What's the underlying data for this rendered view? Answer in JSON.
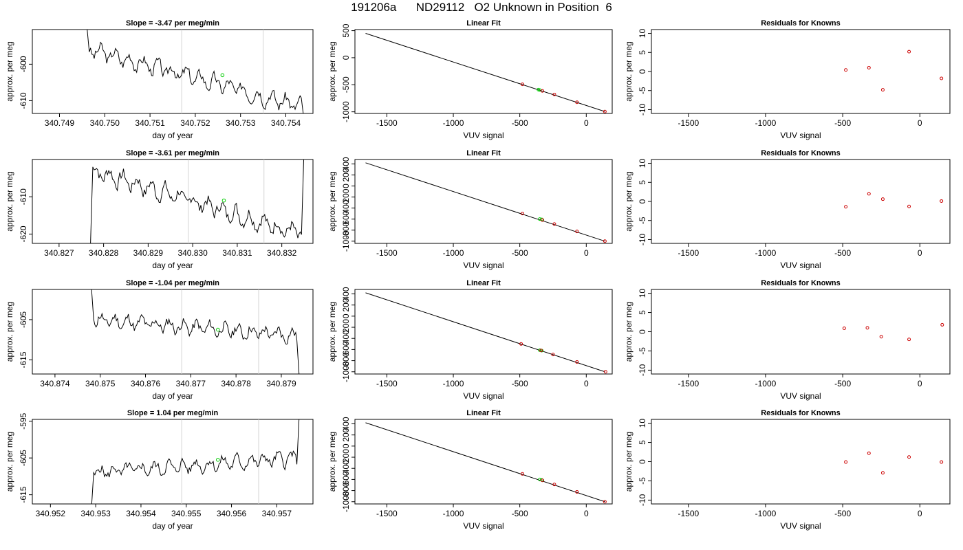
{
  "figure": {
    "title": "191206a      ND29112   O2 Unknown in Position  6"
  },
  "colors": {
    "trace": "#000000",
    "known_points": "#cc0000",
    "unknown_points": "#00cc00",
    "marker_lines": "#d3d3d3"
  },
  "chart_data": [
    {
      "type": "line",
      "panel": "row1-trace",
      "title": "Slope =  -3.47  per meg/min",
      "xlabel": "day of year",
      "ylabel": "approx. per meg",
      "xlim": [
        340.7484,
        340.7546
      ],
      "ylim": [
        -613.5,
        -590.5
      ],
      "xticks": [
        "340.749",
        "340.750",
        "340.751",
        "340.752",
        "340.753",
        "340.754"
      ],
      "xtick_values": [
        340.749,
        340.75,
        340.751,
        340.752,
        340.753,
        340.754
      ],
      "yticks": [
        "-600",
        "-610"
      ],
      "ytick_values": [
        -600,
        -610
      ],
      "vlines": [
        340.7517,
        340.7535
      ],
      "signal": {
        "x_start": 340.7496,
        "x_end": 340.7544,
        "base_start": -596,
        "base_end": -611.5,
        "amp": 2.2,
        "seed": 3,
        "spike_start": -589,
        "spike_end": -615
      },
      "unknown_marker": {
        "x": 340.7526,
        "y": -603
      }
    },
    {
      "type": "scatter",
      "panel": "row1-fit",
      "title": "Linear Fit",
      "xlabel": "VUV signal",
      "ylabel": "approx. per meg",
      "xlim": [
        -1740,
        195
      ],
      "ylim": [
        -1030,
        520
      ],
      "xticks": [
        "-1500",
        "-1000",
        "-500",
        "0"
      ],
      "xtick_values": [
        -1500,
        -1000,
        -500,
        0
      ],
      "yticks": [
        "-1000",
        "-500",
        "0",
        "500"
      ],
      "ytick_values": [
        -1000,
        -500,
        0,
        500
      ],
      "line": {
        "x": [
          -1660,
          140
        ],
        "y": [
          450,
          -995
        ]
      },
      "known_points": {
        "x": [
          -480,
          -330,
          -240,
          -70,
          140
        ],
        "y": [
          -492,
          -614,
          -680,
          -823,
          -995
        ]
      },
      "unknown_points": {
        "x": [
          -360,
          -350
        ],
        "y": [
          -590,
          -598
        ]
      }
    },
    {
      "type": "scatter",
      "panel": "row1-resid",
      "title": "Residuals for Knowns",
      "xlabel": "VUV signal",
      "ylabel": "approx. per meg",
      "xlim": [
        -1740,
        195
      ],
      "ylim": [
        -11,
        11
      ],
      "xticks": [
        "-1500",
        "-1000",
        "-500",
        "0"
      ],
      "xtick_values": [
        -1500,
        -1000,
        -500,
        0
      ],
      "yticks": [
        "-10",
        "-5",
        "0",
        "5",
        "10"
      ],
      "ytick_values": [
        -10,
        -5,
        0,
        5,
        10
      ],
      "known_points": {
        "x": [
          -480,
          -330,
          -240,
          -70,
          140
        ],
        "y": [
          0.4,
          1.0,
          -4.8,
          5.2,
          -1.8
        ]
      }
    },
    {
      "type": "line",
      "panel": "row2-trace",
      "title": "Slope =  -3.61  per meg/min",
      "xlabel": "day of year",
      "ylabel": "approx. per meg",
      "xlim": [
        340.8264,
        340.8327
      ],
      "ylim": [
        -622.5,
        -600
      ],
      "xticks": [
        "340.827",
        "340.828",
        "340.829",
        "340.830",
        "340.831",
        "340.832"
      ],
      "xtick_values": [
        340.827,
        340.828,
        340.829,
        340.83,
        340.831,
        340.832
      ],
      "yticks": [
        "-610",
        "-620"
      ],
      "ytick_values": [
        -610,
        -620
      ],
      "vlines": [
        340.8299,
        340.8316
      ],
      "signal": {
        "x_start": 340.8277,
        "x_end": 340.8325,
        "base_start": -603,
        "base_end": -620,
        "amp": 2.4,
        "seed": 7,
        "spike_start": -625,
        "spike_end": -597
      },
      "unknown_marker": {
        "x": 340.8307,
        "y": -611
      }
    },
    {
      "type": "scatter",
      "panel": "row2-fit",
      "title": "Linear Fit",
      "xlabel": "VUV signal",
      "ylabel": "approx. per meg",
      "xlim": [
        -1740,
        195
      ],
      "ylim": [
        -1040,
        480
      ],
      "xticks": [
        "-1500",
        "-1000",
        "-500",
        "0"
      ],
      "xtick_values": [
        -1500,
        -1000,
        -500,
        0
      ],
      "yticks": [
        "-1000",
        "-800",
        "-600",
        "-400",
        "-200",
        "0",
        "200",
        "400"
      ],
      "ytick_values": [
        -1000,
        -800,
        -600,
        -400,
        -200,
        0,
        200,
        400
      ],
      "line": {
        "x": [
          -1660,
          140
        ],
        "y": [
          420,
          -1000
        ]
      },
      "known_points": {
        "x": [
          -480,
          -330,
          -240,
          -70,
          140
        ],
        "y": [
          -500,
          -617,
          -690,
          -823,
          -1000
        ]
      },
      "unknown_points": {
        "x": [
          -350,
          -335
        ],
        "y": [
          -600,
          -605
        ]
      }
    },
    {
      "type": "scatter",
      "panel": "row2-resid",
      "title": "Residuals for Knowns",
      "xlabel": "VUV signal",
      "ylabel": "approx. per meg",
      "xlim": [
        -1740,
        195
      ],
      "ylim": [
        -11,
        11
      ],
      "xticks": [
        "-1500",
        "-1000",
        "-500",
        "0"
      ],
      "xtick_values": [
        -1500,
        -1000,
        -500,
        0
      ],
      "yticks": [
        "-10",
        "-5",
        "0",
        "5",
        "10"
      ],
      "ytick_values": [
        -10,
        -5,
        0,
        5,
        10
      ],
      "known_points": {
        "x": [
          -480,
          -330,
          -240,
          -70,
          140
        ],
        "y": [
          -1.4,
          2.0,
          0.6,
          -1.3,
          0.1
        ]
      }
    },
    {
      "type": "line",
      "panel": "row3-trace",
      "title": "Slope =  -1.04  per meg/min",
      "xlabel": "day of year",
      "ylabel": "approx. per meg",
      "xlim": [
        340.8735,
        340.8797
      ],
      "ylim": [
        -618.5,
        -597.5
      ],
      "xticks": [
        "340.874",
        "340.875",
        "340.876",
        "340.877",
        "340.878",
        "340.879"
      ],
      "xtick_values": [
        340.874,
        340.875,
        340.876,
        340.877,
        340.878,
        340.879
      ],
      "yticks": [
        "-605",
        "-615"
      ],
      "ytick_values": [
        -605,
        -615
      ],
      "vlines": [
        340.8768,
        340.8785
      ],
      "signal": {
        "x_start": 340.8748,
        "x_end": 340.8794,
        "base_start": -605,
        "base_end": -609,
        "amp": 1.8,
        "seed": 11,
        "spike_start": -596,
        "spike_end": -620
      },
      "unknown_marker": {
        "x": 340.8776,
        "y": -607.5
      }
    },
    {
      "type": "scatter",
      "panel": "row3-fit",
      "title": "Linear Fit",
      "xlabel": "VUV signal",
      "ylabel": "approx. per meg",
      "xlim": [
        -1740,
        195
      ],
      "ylim": [
        -1040,
        480
      ],
      "xticks": [
        "-1500",
        "-1000",
        "-500",
        "0"
      ],
      "xtick_values": [
        -1500,
        -1000,
        -500,
        0
      ],
      "yticks": [
        "-1000",
        "-800",
        "-600",
        "-400",
        "-200",
        "0",
        "200",
        "400"
      ],
      "ytick_values": [
        -1000,
        -800,
        -600,
        -400,
        -200,
        0,
        200,
        400
      ],
      "line": {
        "x": [
          -1660,
          140
        ],
        "y": [
          420,
          -1000
        ]
      },
      "known_points": {
        "x": [
          -490,
          -340,
          -250,
          -70,
          145
        ],
        "y": [
          -500,
          -617,
          -690,
          -823,
          -1000
        ]
      },
      "unknown_points": {
        "x": [
          -350,
          -335
        ],
        "y": [
          -612,
          -620
        ]
      }
    },
    {
      "type": "scatter",
      "panel": "row3-resid",
      "title": "Residuals for Knowns",
      "xlabel": "VUV signal",
      "ylabel": "approx. per meg",
      "xlim": [
        -1740,
        195
      ],
      "ylim": [
        -11,
        11
      ],
      "xticks": [
        "-1500",
        "-1000",
        "-500",
        "0"
      ],
      "xtick_values": [
        -1500,
        -1000,
        -500,
        0
      ],
      "yticks": [
        "-10",
        "-5",
        "0",
        "5",
        "10"
      ],
      "ytick_values": [
        -10,
        -5,
        0,
        5,
        10
      ],
      "known_points": {
        "x": [
          -490,
          -340,
          -250,
          -70,
          145
        ],
        "y": [
          0.9,
          1.0,
          -1.3,
          -2.0,
          1.8
        ]
      }
    },
    {
      "type": "line",
      "panel": "row4-trace",
      "title": "Slope =  1.04  per meg/min",
      "xlabel": "day of year",
      "ylabel": "approx. per meg",
      "xlim": [
        340.9516,
        340.9578
      ],
      "ylim": [
        -617.5,
        -594.5
      ],
      "xticks": [
        "340.952",
        "340.953",
        "340.954",
        "340.955",
        "340.956",
        "340.957"
      ],
      "xtick_values": [
        340.952,
        340.953,
        340.954,
        340.955,
        340.956,
        340.957
      ],
      "yticks": [
        "-595",
        "-605",
        "-615"
      ],
      "ytick_values": [
        -595,
        -605,
        -615
      ],
      "vlines": [
        340.9549,
        340.9566
      ],
      "signal": {
        "x_start": 340.9529,
        "x_end": 340.9575,
        "base_start": -609,
        "base_end": -605,
        "amp": 1.9,
        "seed": 5,
        "spike_start": -620,
        "spike_end": -592
      },
      "unknown_marker": {
        "x": 340.9557,
        "y": -605.5
      }
    },
    {
      "type": "scatter",
      "panel": "row4-fit",
      "title": "Linear Fit",
      "xlabel": "VUV signal",
      "ylabel": "approx. per meg",
      "xlim": [
        -1740,
        195
      ],
      "ylim": [
        -1040,
        480
      ],
      "xticks": [
        "-1500",
        "-1000",
        "-500",
        "0"
      ],
      "xtick_values": [
        -1500,
        -1000,
        -500,
        0
      ],
      "yticks": [
        "-1000",
        "-800",
        "-600",
        "-400",
        "-200",
        "0",
        "200",
        "400"
      ],
      "ytick_values": [
        -1000,
        -800,
        -600,
        -400,
        -200,
        0,
        200,
        400
      ],
      "line": {
        "x": [
          -1660,
          140
        ],
        "y": [
          420,
          -1000
        ]
      },
      "known_points": {
        "x": [
          -480,
          -330,
          -240,
          -70,
          140
        ],
        "y": [
          -500,
          -617,
          -690,
          -823,
          -1000
        ]
      },
      "unknown_points": {
        "x": [
          -350,
          -335
        ],
        "y": [
          -600,
          -607
        ]
      }
    },
    {
      "type": "scatter",
      "panel": "row4-resid",
      "title": "Residuals for Knowns",
      "xlabel": "VUV signal",
      "ylabel": "approx. per meg",
      "xlim": [
        -1740,
        195
      ],
      "ylim": [
        -11,
        11
      ],
      "xticks": [
        "-1500",
        "-1000",
        "-500",
        "0"
      ],
      "xtick_values": [
        -1500,
        -1000,
        -500,
        0
      ],
      "yticks": [
        "-10",
        "-5",
        "0",
        "5",
        "10"
      ],
      "ytick_values": [
        -10,
        -5,
        0,
        5,
        10
      ],
      "known_points": {
        "x": [
          -480,
          -330,
          -240,
          -70,
          140
        ],
        "y": [
          -0.1,
          2.2,
          -2.9,
          1.2,
          -0.1
        ]
      }
    }
  ]
}
